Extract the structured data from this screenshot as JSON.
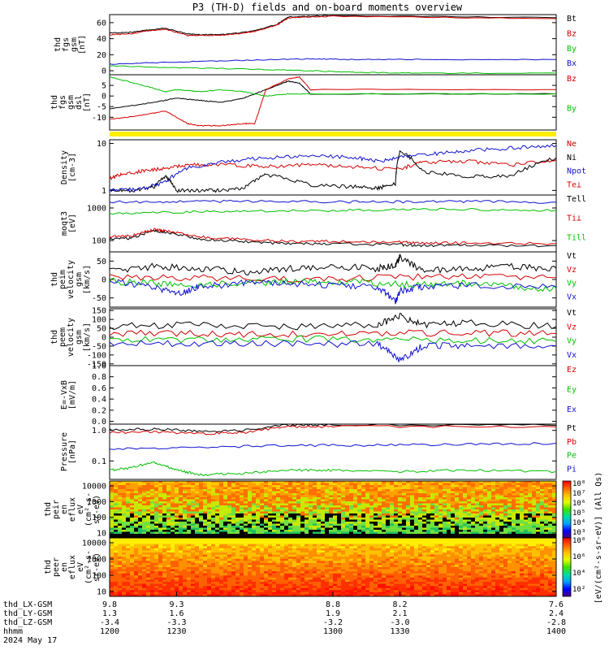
{
  "title": "P3 (TH-D) fields and on-board moments overview",
  "colors": {
    "black": "#000000",
    "red": "#d40000",
    "green": "#00c000",
    "blue": "#1010d0",
    "yellow": "#ffee00"
  },
  "chart_data": [
    {
      "type": "line",
      "panel": "fgs-btot",
      "ylabel": [
        "thd",
        "fgs",
        "gsm",
        "[nT]"
      ],
      "ylim": [
        -5,
        70
      ],
      "yticks": [
        "60",
        "40",
        "20",
        "0"
      ],
      "legend": [
        {
          "name": "Bt",
          "color": "black"
        },
        {
          "name": "Bz",
          "color": "red"
        },
        {
          "name": "By",
          "color": "green"
        },
        {
          "name": "Bx",
          "color": "blue"
        }
      ],
      "series": [
        {
          "name": "Bt",
          "color": "black",
          "x": [
            1200,
            1210,
            1215,
            1225,
            1235,
            1240,
            1250,
            1260,
            1265,
            1275,
            1280,
            1300,
            1400
          ],
          "y": [
            47,
            48,
            50,
            53,
            46,
            45,
            45,
            48,
            50,
            58,
            67,
            69,
            66
          ]
        },
        {
          "name": "Bz",
          "color": "red",
          "x": [
            1200,
            1210,
            1215,
            1225,
            1235,
            1240,
            1250,
            1260,
            1265,
            1275,
            1280,
            1300,
            1400
          ],
          "y": [
            45,
            46,
            49,
            52,
            44,
            44,
            44,
            47,
            49,
            57,
            66,
            68,
            65
          ]
        },
        {
          "name": "By",
          "color": "green",
          "x": [
            1200,
            1230,
            1260,
            1290,
            1310,
            1340,
            1400
          ],
          "y": [
            6,
            4,
            2,
            0,
            -2,
            -3,
            -3
          ]
        },
        {
          "name": "Bx",
          "color": "blue",
          "x": [
            1200,
            1230,
            1260,
            1290,
            1310,
            1340,
            1400
          ],
          "y": [
            8,
            11,
            13,
            15,
            14,
            14,
            14
          ]
        }
      ]
    },
    {
      "type": "line",
      "panel": "fgs-comp",
      "ylabel": [
        "thd",
        "fgs",
        "gsm",
        "dsl",
        "[nT]"
      ],
      "ylim": [
        -16,
        10
      ],
      "yticks": [
        "5",
        "0",
        "-5",
        "-10"
      ],
      "legend": [
        {
          "name": "Bz",
          "color": "red"
        },
        {
          "name": "By",
          "color": "green"
        }
      ],
      "series": [
        {
          "name": "Bx",
          "color": "black",
          "x": [
            1200,
            1220,
            1230,
            1240,
            1250,
            1260,
            1270,
            1275,
            1280,
            1285,
            1290,
            1400
          ],
          "y": [
            -6,
            -3,
            -1,
            -2,
            -3,
            -1,
            3,
            5,
            7,
            6,
            1,
            1
          ]
        },
        {
          "name": "Bz",
          "color": "red",
          "x": [
            1200,
            1215,
            1225,
            1235,
            1240,
            1250,
            1260,
            1265,
            1270,
            1280,
            1285,
            1290,
            1400
          ],
          "y": [
            -11,
            -9,
            -7,
            -13,
            -14,
            -14,
            -13,
            -13,
            3,
            8,
            9,
            3,
            3
          ]
        },
        {
          "name": "By",
          "color": "green",
          "x": [
            1200,
            1215,
            1225,
            1230,
            1240,
            1250,
            1260,
            1270,
            1280,
            1290,
            1400
          ],
          "y": [
            9,
            5,
            2,
            3,
            2,
            3,
            2,
            0,
            1,
            1,
            1
          ]
        }
      ]
    },
    {
      "type": "line",
      "panel": "density",
      "ylabel": [
        "Density",
        "[cm-3]"
      ],
      "ylog": true,
      "ylim": [
        0.8,
        12
      ],
      "yticks": [
        "10",
        "1"
      ],
      "legend": [
        {
          "name": "Ne",
          "color": "red"
        },
        {
          "name": "Ni",
          "color": "black"
        },
        {
          "name": "Npot",
          "color": "blue"
        },
        {
          "name": "Te⊥",
          "color": "red"
        }
      ],
      "series": [
        {
          "name": "Ne",
          "color": "red",
          "x": [
            1200,
            1205,
            1215,
            1225,
            1235,
            1250,
            1270,
            1290,
            1310,
            1330,
            1340,
            1360,
            1380,
            1400
          ],
          "y": [
            1.8,
            2.2,
            2.6,
            3,
            3.5,
            3.6,
            3.2,
            3.5,
            3.2,
            2.8,
            4,
            4.2,
            3.5,
            4.5
          ]
        },
        {
          "name": "Ni",
          "color": "black",
          "x": [
            1200,
            1210,
            1220,
            1225,
            1230,
            1240,
            1250,
            1260,
            1270,
            1290,
            1310,
            1320,
            1328,
            1330,
            1340,
            1360,
            1380,
            1400
          ],
          "y": [
            1,
            1,
            1.2,
            2,
            1,
            1,
            1,
            1.1,
            2.2,
            1.3,
            1.2,
            1.1,
            1.4,
            7,
            2.5,
            2,
            2,
            5
          ]
        },
        {
          "name": "Npot",
          "color": "blue",
          "x": [
            1200,
            1215,
            1225,
            1235,
            1250,
            1270,
            1290,
            1310,
            1320,
            1330,
            1345,
            1360,
            1380,
            1400
          ],
          "y": [
            1,
            1.1,
            1.5,
            3,
            4,
            5,
            5.5,
            5,
            4.2,
            5,
            6,
            7,
            8,
            9
          ]
        }
      ]
    },
    {
      "type": "line",
      "panel": "temperature",
      "ylabel": [
        "moqt3",
        "[eV]"
      ],
      "ylog": true,
      "ylim": [
        45,
        2500
      ],
      "yticks": [
        "1000",
        "100"
      ],
      "legend": [
        {
          "name": "Tell",
          "color": "black"
        },
        {
          "name": "Ti⊥",
          "color": "red"
        },
        {
          "name": "Till",
          "color": "green"
        }
      ],
      "series": [
        {
          "name": "Te⊥",
          "color": "blue",
          "x": [
            1200,
            1230,
            1260,
            1300,
            1330,
            1360,
            1400
          ],
          "y": [
            1500,
            1600,
            1600,
            1550,
            1550,
            1600,
            1500
          ]
        },
        {
          "name": "Till",
          "color": "green",
          "x": [
            1200,
            1230,
            1260,
            1300,
            1330,
            1360,
            1400
          ],
          "y": [
            700,
            750,
            800,
            850,
            900,
            900,
            850
          ]
        },
        {
          "name": "Tell",
          "color": "black",
          "x": [
            1200,
            1210,
            1220,
            1225,
            1240,
            1260,
            1280,
            1300,
            1330,
            1340,
            1360,
            1400
          ],
          "y": [
            110,
            120,
            200,
            180,
            110,
            95,
            80,
            80,
            75,
            70,
            72,
            70
          ]
        },
        {
          "name": "Ti⊥",
          "color": "red",
          "x": [
            1200,
            1210,
            1220,
            1225,
            1240,
            1260,
            1280,
            1300,
            1330,
            1340,
            1360,
            1400
          ],
          "y": [
            130,
            140,
            220,
            200,
            130,
            110,
            95,
            95,
            90,
            85,
            85,
            80
          ]
        }
      ]
    },
    {
      "type": "line",
      "panel": "ion-velocity",
      "ylabel": [
        "thd",
        "peim",
        "velocity",
        "gsm",
        "[km/s]"
      ],
      "ylim": [
        -75,
        75
      ],
      "yticks": [
        "50",
        "0",
        "-50"
      ],
      "legend": [
        {
          "name": "Vt",
          "color": "black"
        },
        {
          "name": "Vz",
          "color": "red"
        },
        {
          "name": "Vy",
          "color": "green"
        },
        {
          "name": "Vx",
          "color": "blue"
        }
      ],
      "series": [
        {
          "name": "Vt",
          "color": "black",
          "x": [
            1200,
            1220,
            1240,
            1260,
            1280,
            1300,
            1320,
            1328,
            1330,
            1340,
            1360,
            1380,
            1400
          ],
          "y": [
            25,
            35,
            30,
            20,
            30,
            35,
            30,
            40,
            60,
            25,
            30,
            35,
            30
          ]
        },
        {
          "name": "Vz",
          "color": "red",
          "x": [
            1200,
            1240,
            1280,
            1320,
            1360,
            1400
          ],
          "y": [
            5,
            5,
            0,
            5,
            10,
            5
          ]
        },
        {
          "name": "Vy",
          "color": "green",
          "x": [
            1200,
            1220,
            1240,
            1260,
            1280,
            1300,
            1320,
            1340,
            1360,
            1380,
            1400
          ],
          "y": [
            -5,
            -10,
            -15,
            -10,
            -5,
            -5,
            -10,
            -15,
            -10,
            -20,
            -25
          ]
        },
        {
          "name": "Vx",
          "color": "blue",
          "x": [
            1200,
            1220,
            1230,
            1240,
            1260,
            1280,
            1300,
            1320,
            1328,
            1330,
            1340,
            1360,
            1400
          ],
          "y": [
            -5,
            -20,
            -40,
            -20,
            -10,
            -10,
            -15,
            -20,
            -60,
            -30,
            -20,
            -15,
            -20
          ]
        }
      ]
    },
    {
      "type": "line",
      "panel": "electron-velocity",
      "ylabel": [
        "thd",
        "peem",
        "velocity",
        "gsm",
        "[km/s]"
      ],
      "ylim": [
        -160,
        160
      ],
      "yticks": [
        "150",
        "100",
        "50",
        "0",
        "-50",
        "-100",
        "-150"
      ],
      "legend": [
        {
          "name": "Vt",
          "color": "black"
        },
        {
          "name": "Vz",
          "color": "red"
        },
        {
          "name": "Vy",
          "color": "green"
        },
        {
          "name": "Vx",
          "color": "blue"
        }
      ],
      "series": [
        {
          "name": "Vt",
          "color": "black",
          "x": [
            1200,
            1240,
            1280,
            1320,
            1330,
            1340,
            1360,
            1400
          ],
          "y": [
            60,
            70,
            60,
            70,
            120,
            70,
            80,
            60
          ]
        },
        {
          "name": "Vz",
          "color": "red",
          "x": [
            1200,
            1240,
            1280,
            1320,
            1360,
            1400
          ],
          "y": [
            20,
            20,
            15,
            20,
            25,
            20
          ]
        },
        {
          "name": "Vy",
          "color": "green",
          "x": [
            1200,
            1240,
            1280,
            1320,
            1360,
            1400
          ],
          "y": [
            -10,
            -15,
            -10,
            -10,
            -20,
            -25
          ]
        },
        {
          "name": "Vx",
          "color": "blue",
          "x": [
            1200,
            1240,
            1280,
            1320,
            1330,
            1340,
            1360,
            1400
          ],
          "y": [
            -30,
            -40,
            -35,
            -40,
            -130,
            -50,
            -45,
            -50
          ]
        }
      ]
    },
    {
      "type": "line",
      "panel": "efield",
      "ylabel": [
        "E=-VxB",
        "[mV/m]"
      ],
      "ylim": [
        -0.05,
        1.0
      ],
      "yticks": [
        "1.0",
        "0.8",
        "0.6",
        "0.4",
        "0.2",
        "0.0"
      ],
      "legend": [
        {
          "name": "Ez",
          "color": "red"
        },
        {
          "name": "Ey",
          "color": "green"
        },
        {
          "name": "Ex",
          "color": "blue"
        }
      ],
      "series": []
    },
    {
      "type": "line",
      "panel": "pressure",
      "ylabel": [
        "Pressure",
        "[nPa]"
      ],
      "ylog": true,
      "ylim": [
        0.025,
        1.6
      ],
      "yticks": [
        "1.0",
        "0.1"
      ],
      "legend": [
        {
          "name": "Pt",
          "color": "black"
        },
        {
          "name": "Pb",
          "color": "red"
        },
        {
          "name": "Pe",
          "color": "green"
        },
        {
          "name": "Pi",
          "color": "blue"
        }
      ],
      "series": [
        {
          "name": "Pt",
          "color": "black",
          "x": [
            1200,
            1220,
            1240,
            1260,
            1280,
            1300,
            1400
          ],
          "y": [
            1.05,
            1.1,
            0.95,
            1.0,
            1.5,
            1.55,
            1.45
          ]
        },
        {
          "name": "Pb",
          "color": "red",
          "x": [
            1200,
            1220,
            1240,
            1260,
            1280,
            1300,
            1400
          ],
          "y": [
            0.85,
            0.9,
            0.78,
            0.85,
            1.3,
            1.35,
            1.3
          ]
        },
        {
          "name": "Pi",
          "color": "blue",
          "x": [
            1200,
            1240,
            1280,
            1320,
            1360,
            1400
          ],
          "y": [
            0.25,
            0.28,
            0.32,
            0.33,
            0.35,
            0.38
          ]
        },
        {
          "name": "Pe",
          "color": "green",
          "x": [
            1200,
            1210,
            1220,
            1230,
            1240,
            1260,
            1280,
            1300,
            1330,
            1360,
            1400
          ],
          "y": [
            0.05,
            0.06,
            0.09,
            0.05,
            0.035,
            0.04,
            0.05,
            0.05,
            0.045,
            0.05,
            0.045
          ]
        }
      ]
    },
    {
      "type": "heatmap",
      "panel": "ion-spectrogram",
      "ylabel": [
        "thd",
        "peir",
        "en",
        "eflux",
        "eV",
        "(cm²-s-",
        "sr-eV)"
      ],
      "yticks": [
        "10000",
        "1000",
        "100",
        "10"
      ]
    },
    {
      "type": "heatmap",
      "panel": "electron-spectrogram",
      "ylabel": [
        "thd",
        "peer",
        "en",
        "eflux",
        "eV",
        "(cm²-s-",
        "sr-eV)"
      ],
      "yticks": [
        "10000",
        "1000",
        "100",
        "10"
      ]
    }
  ],
  "colorbar": {
    "label": "[eV/(cm²-s-sr-eV)] (All Qs)",
    "ion_ticks": [
      "10⁸",
      "10⁷",
      "10⁶",
      "10⁵",
      "10⁴",
      "10³"
    ],
    "electron_ticks": [
      "10⁸",
      "10⁶",
      "10⁴",
      "10²"
    ]
  },
  "xaxis": {
    "ticks": [
      {
        "t": 1200,
        "label": "1200",
        "lx": "9.8",
        "ly": "1.3",
        "lz": "-3.4"
      },
      {
        "t": 1230,
        "label": "1230",
        "lx": "9.3",
        "ly": "1.6",
        "lz": "-3.3"
      },
      {
        "t": 1300,
        "label": "1300",
        "lx": "8.8",
        "ly": "1.9",
        "lz": "-3.2"
      },
      {
        "t": 1330,
        "label": "1330",
        "lx": "8.2",
        "ly": "2.1",
        "lz": "-3.0"
      },
      {
        "t": 1400,
        "label": "1400",
        "lx": "7.6",
        "ly": "2.4",
        "lz": "-2.8"
      }
    ],
    "row_labels": [
      "thd_LX-GSM",
      "thd_LY-GSM",
      "thd_LZ-GSM",
      "hhmm"
    ],
    "date": "2024 May 17"
  }
}
